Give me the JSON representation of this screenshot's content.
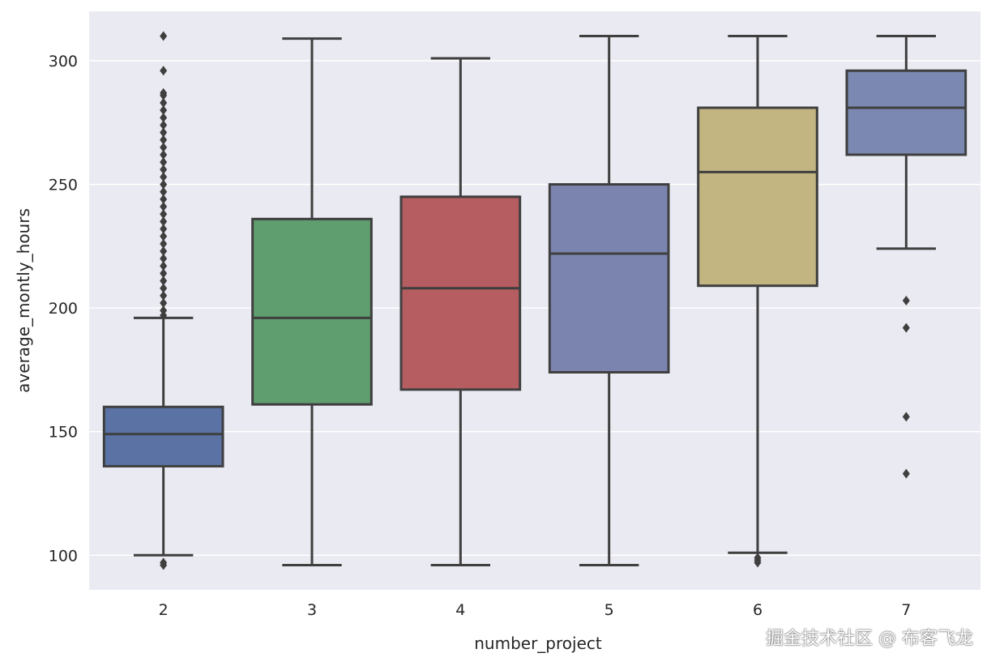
{
  "chart_data": {
    "type": "box",
    "title": "",
    "xlabel": "number_project",
    "ylabel": "average_montly_hours",
    "ylim": [
      86,
      320
    ],
    "yticks": [
      100,
      150,
      200,
      250,
      300
    ],
    "grid": true,
    "categories": [
      "2",
      "3",
      "4",
      "5",
      "6",
      "7"
    ],
    "boxes": [
      {
        "category": "2",
        "whisker_low": 100,
        "q1": 136,
        "median": 149,
        "q3": 160,
        "whisker_high": 196,
        "outliers": [
          96,
          97,
          197,
          199,
          202,
          205,
          208,
          211,
          214,
          217,
          220,
          223,
          226,
          229,
          232,
          235,
          238,
          241,
          244,
          247,
          250,
          253,
          256,
          259,
          262,
          265,
          268,
          271,
          274,
          277,
          280,
          283,
          286,
          287,
          296,
          310
        ],
        "color": "#5a73a4"
      },
      {
        "category": "3",
        "whisker_low": 96,
        "q1": 161,
        "median": 196,
        "q3": 236,
        "whisker_high": 309,
        "outliers": [],
        "color": "#5f9e6e"
      },
      {
        "category": "4",
        "whisker_low": 96,
        "q1": 167,
        "median": 208,
        "q3": 245,
        "whisker_high": 301,
        "outliers": [],
        "color": "#b55d60"
      },
      {
        "category": "5",
        "whisker_low": 96,
        "q1": 174,
        "median": 222,
        "q3": 250,
        "whisker_high": 310,
        "outliers": [],
        "color": "#7b84af"
      },
      {
        "category": "6",
        "whisker_low": 101,
        "q1": 209,
        "median": 255,
        "q3": 281,
        "whisker_high": 310,
        "outliers": [
          97,
          98,
          99
        ],
        "color": "#c2b582"
      },
      {
        "category": "7",
        "whisker_low": 224,
        "q1": 262,
        "median": 281,
        "q3": 296,
        "whisker_high": 310,
        "outliers": [
          133,
          156,
          192,
          203
        ],
        "color": "#7b89b2"
      }
    ],
    "colors": {
      "background": "#eaeaf2",
      "grid": "#ffffff",
      "line": "#3f3f3f"
    }
  },
  "watermark": "掘金技术社区 @ 布客飞龙"
}
